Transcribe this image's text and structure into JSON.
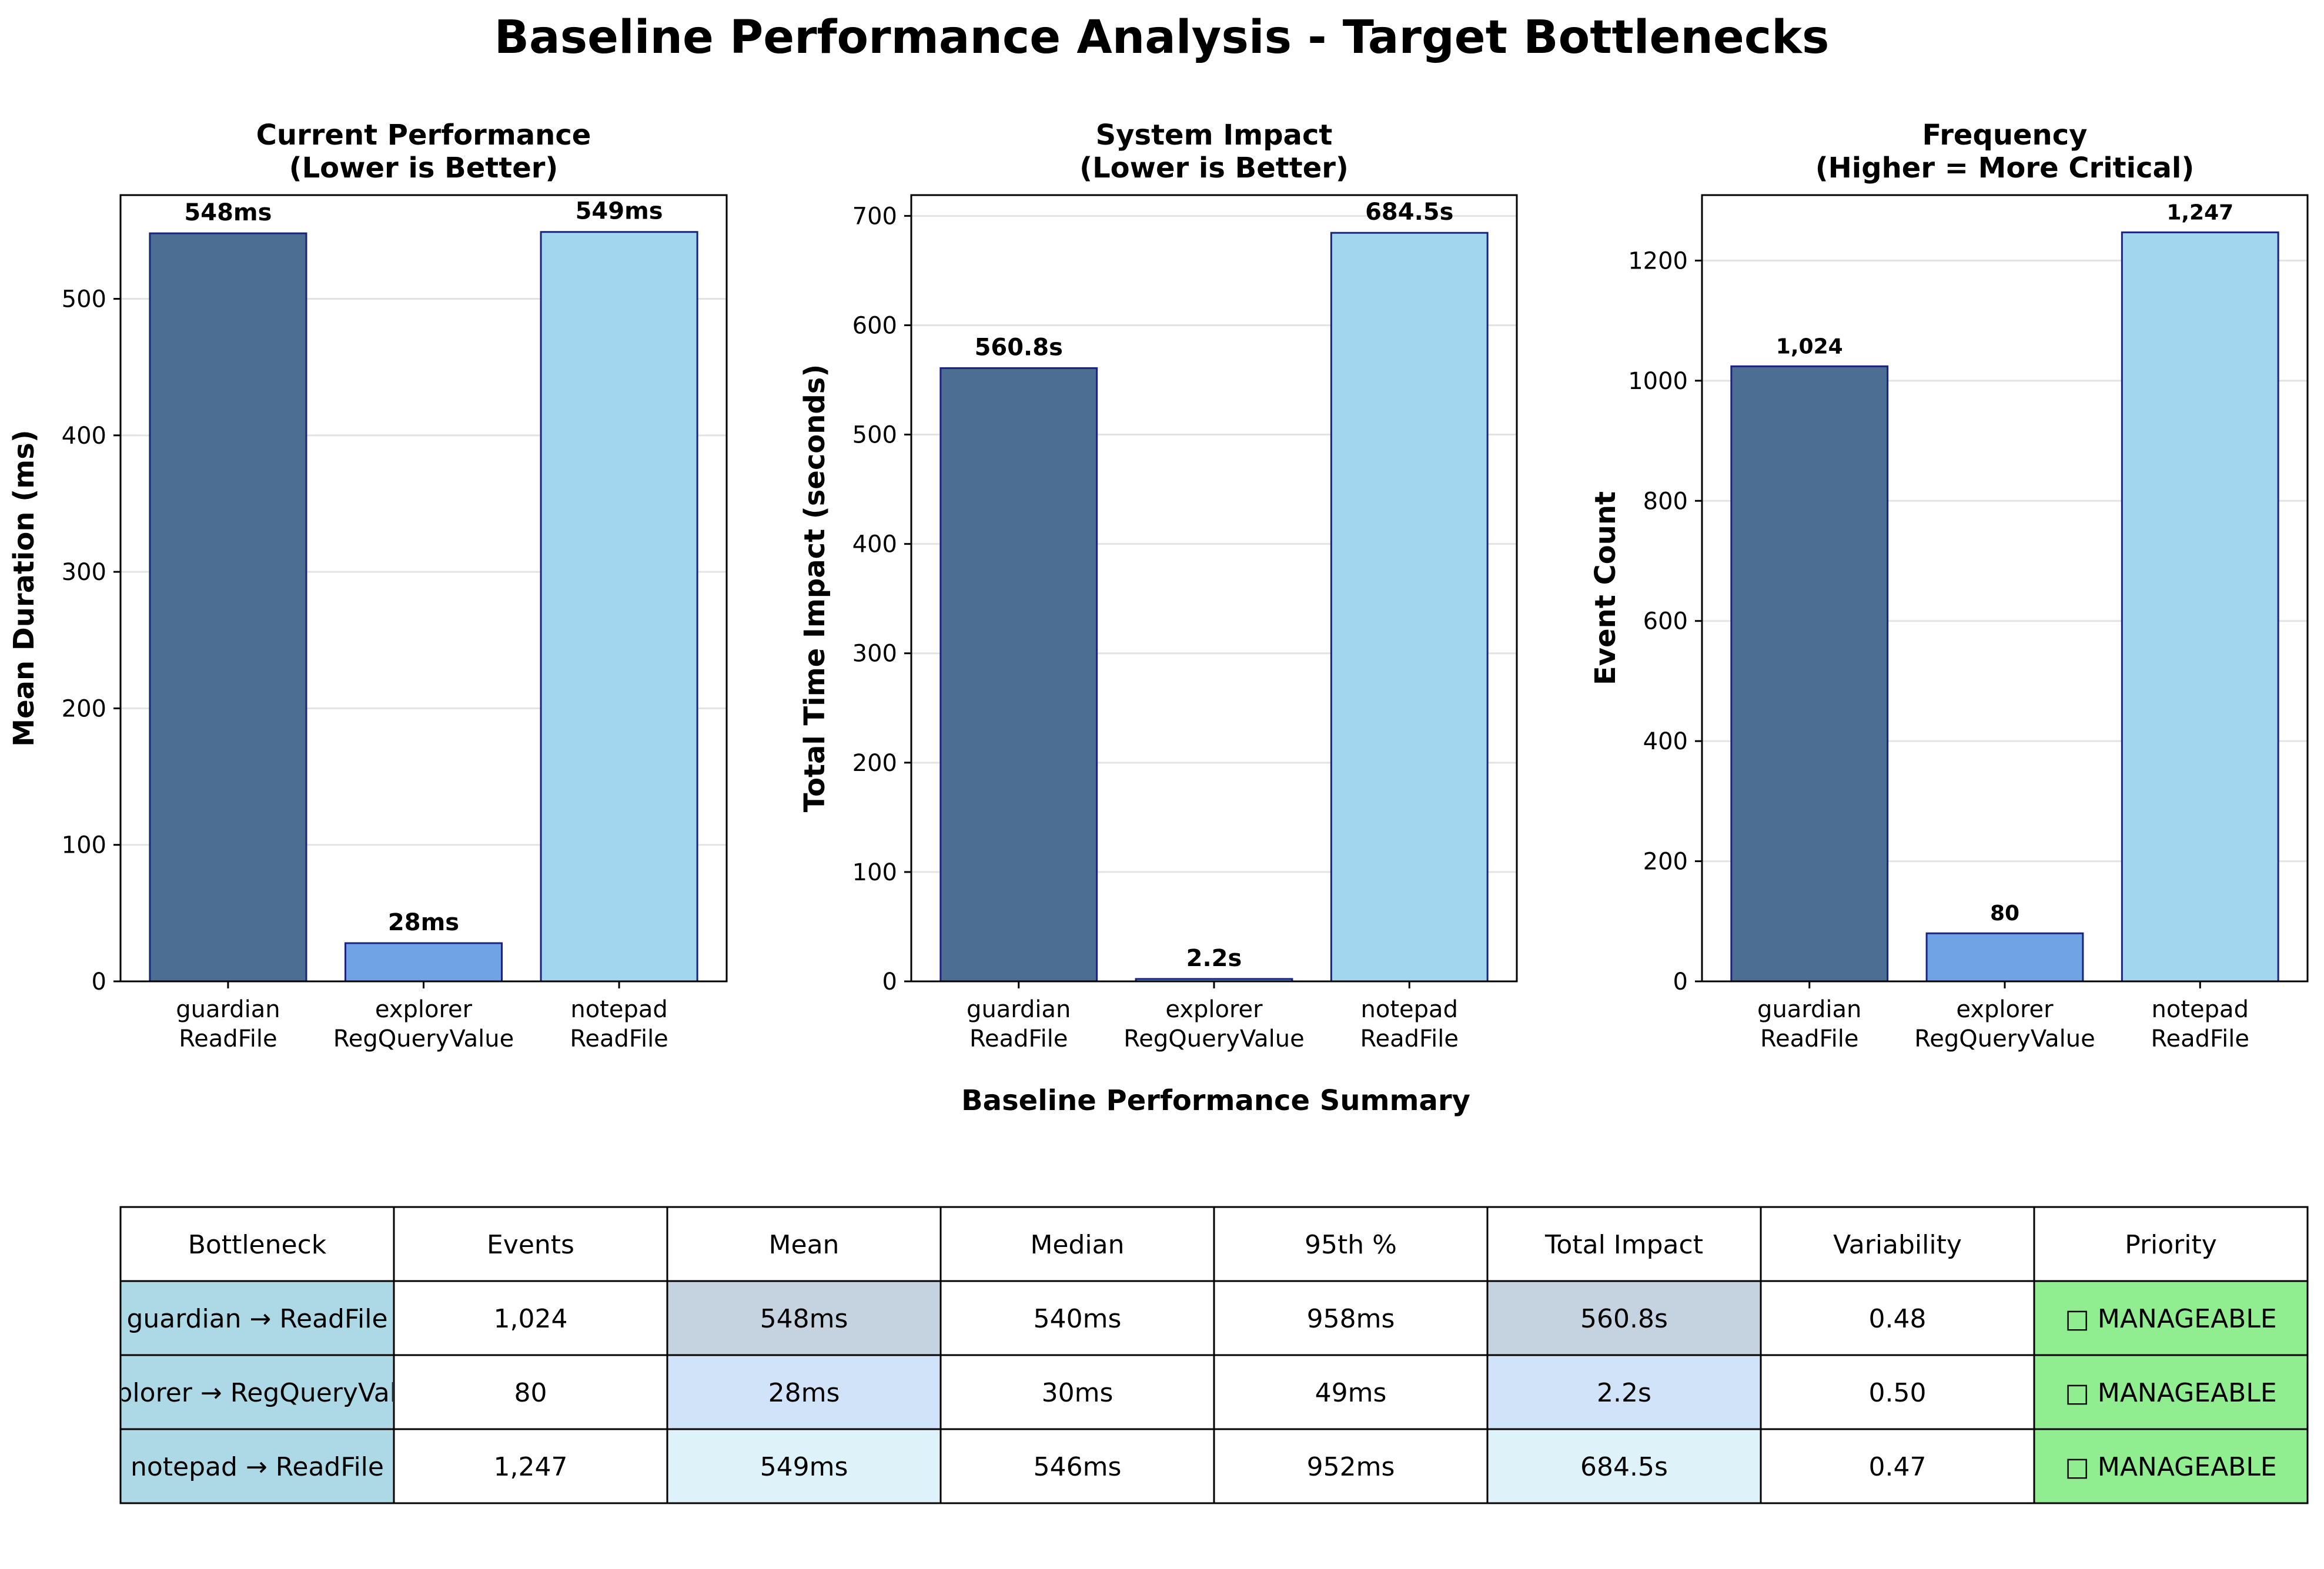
{
  "figure_title": "Baseline Performance Analysis - Target Bottlenecks",
  "colors": [
    "#4b6e92",
    "#6fa3e6",
    "#a1d6ee"
  ],
  "bar_edge": "#1a237e",
  "chart_data": [
    {
      "type": "bar",
      "title_lines": [
        "Current Performance",
        "(Lower is Better)"
      ],
      "ylabel": "Mean Duration (ms)",
      "categories": [
        [
          "guardian",
          "ReadFile"
        ],
        [
          "explorer",
          "RegQueryValue"
        ],
        [
          "notepad",
          "ReadFile"
        ]
      ],
      "values": [
        548,
        28,
        549
      ],
      "value_labels": [
        "548ms",
        "28ms",
        "549ms"
      ],
      "ylim": [
        0,
        576
      ],
      "yticks": [
        0,
        100,
        200,
        300,
        400,
        500
      ],
      "grid": true
    },
    {
      "type": "bar",
      "title_lines": [
        "System Impact",
        "(Lower is Better)"
      ],
      "ylabel": "Total Time Impact (seconds)",
      "categories": [
        [
          "guardian",
          "ReadFile"
        ],
        [
          "explorer",
          "RegQueryValue"
        ],
        [
          "notepad",
          "ReadFile"
        ]
      ],
      "values": [
        560.8,
        2.2,
        684.5
      ],
      "value_labels": [
        "560.8s",
        "2.2s",
        "684.5s"
      ],
      "ylim": [
        0,
        719
      ],
      "yticks": [
        0,
        100,
        200,
        300,
        400,
        500,
        600,
        700
      ],
      "grid": true
    },
    {
      "type": "bar",
      "title_lines": [
        "Frequency",
        "(Higher = More Critical)"
      ],
      "ylabel": "Event Count",
      "categories": [
        [
          "guardian",
          "ReadFile"
        ],
        [
          "explorer",
          "RegQueryValue"
        ],
        [
          "notepad",
          "ReadFile"
        ]
      ],
      "values": [
        1024,
        80,
        1247
      ],
      "value_labels": [
        "1,024",
        "80",
        "1,247"
      ],
      "ylim": [
        0,
        1309
      ],
      "yticks": [
        0,
        200,
        400,
        600,
        800,
        1000,
        1200
      ],
      "grid": true
    }
  ],
  "summary": {
    "title": "Baseline Performance Summary",
    "headers": [
      "Bottleneck",
      "Events",
      "Mean",
      "Median",
      "95th %",
      "Total Impact",
      "Variability",
      "Priority"
    ],
    "rows": [
      [
        "guardian → ReadFile",
        "1,024",
        "548ms",
        "540ms",
        "958ms",
        "560.8s",
        "0.48",
        "□ MANAGEABLE"
      ],
      [
        "explorer → RegQueryValue",
        "80",
        "28ms",
        "30ms",
        "49ms",
        "2.2s",
        "0.50",
        "□ MANAGEABLE"
      ],
      [
        "notepad → ReadFile",
        "1,247",
        "549ms",
        "546ms",
        "952ms",
        "684.5s",
        "0.47",
        "□ MANAGEABLE"
      ]
    ],
    "row_colors": [
      "#c5d3e0",
      "#d1e3f8",
      "#def2f9"
    ],
    "label_color": "#add8e6",
    "priority_color": "#90ee90"
  }
}
